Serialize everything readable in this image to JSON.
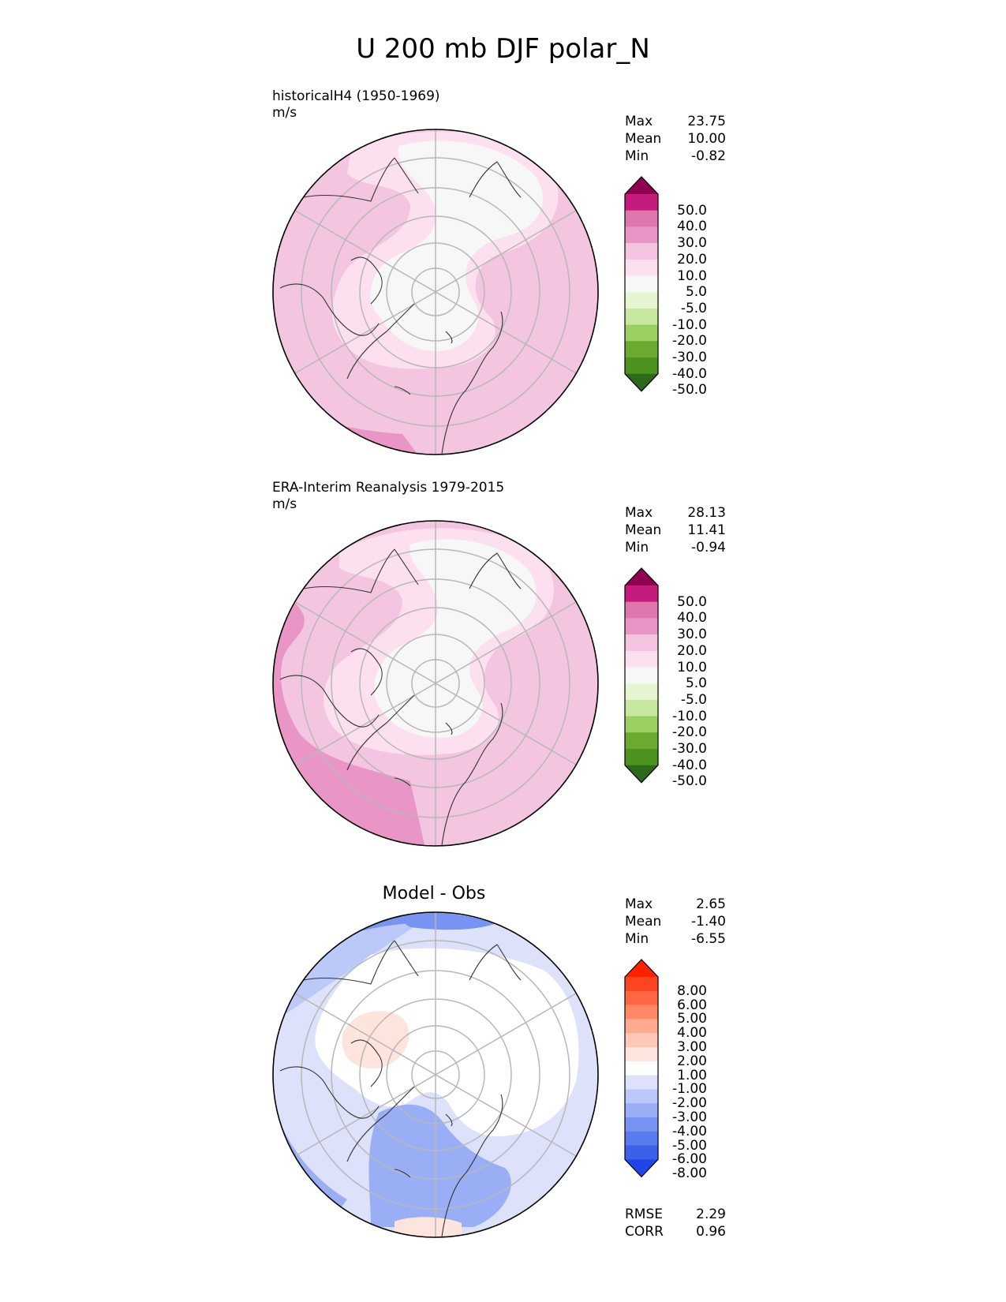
{
  "title": "U 200 mb DJF polar_N",
  "panels": [
    {
      "id": "test",
      "caption": "historicalH4 (1950-1969)",
      "units": "m/s",
      "stats": [
        {
          "label": "Max",
          "value": "23.75"
        },
        {
          "label": "Mean",
          "value": "10.00"
        },
        {
          "label": "Min",
          "value": "-0.82"
        }
      ]
    },
    {
      "id": "ref",
      "caption": "ERA-Interim Reanalysis 1979-2015",
      "units": "m/s",
      "stats": [
        {
          "label": "Max",
          "value": "28.13"
        },
        {
          "label": "Mean",
          "value": "11.41"
        },
        {
          "label": "Min",
          "value": "-0.94"
        }
      ]
    },
    {
      "id": "diff",
      "title": "Model - Obs",
      "stats": [
        {
          "label": "Max",
          "value": "2.65"
        },
        {
          "label": "Mean",
          "value": "-1.40"
        },
        {
          "label": "Min",
          "value": "-6.55"
        }
      ],
      "metrics": [
        {
          "label": "RMSE",
          "value": "2.29"
        },
        {
          "label": "CORR",
          "value": "0.96"
        }
      ]
    }
  ],
  "colorbars": {
    "field": {
      "labels": [
        "50.0",
        "40.0",
        "30.0",
        "20.0",
        "10.0",
        "5.0",
        "-5.0",
        "-10.0",
        "-20.0",
        "-30.0",
        "-40.0",
        "-50.0"
      ],
      "colors": [
        "#8e0152",
        "#c51b7d",
        "#de77ae",
        "#e996c6",
        "#f4c5e1",
        "#fde0ef",
        "#f7f7f7",
        "#e6f5d0",
        "#c8e8a0",
        "#9ccf62",
        "#6aaa30",
        "#4d9221",
        "#2a6a18"
      ]
    },
    "diff": {
      "labels": [
        "8.00",
        "6.00",
        "5.00",
        "4.00",
        "3.00",
        "2.00",
        "1.00",
        "-1.00",
        "-2.00",
        "-3.00",
        "-4.00",
        "-5.00",
        "-6.00",
        "-8.00"
      ],
      "colors": [
        "#ff2200",
        "#ff4422",
        "#ff6644",
        "#ff8866",
        "#ffaa8f",
        "#ffc8b6",
        "#fde4dc",
        "#ffffff",
        "#dde2fa",
        "#bcc8f8",
        "#9aaef5",
        "#7894f2",
        "#5a7aef",
        "#3c60ec",
        "#1f46e9"
      ]
    }
  },
  "chart_data": [
    {
      "type": "heatmap",
      "panel": "historicalH4 (1950-1969)",
      "projection": "north polar stereographic",
      "variable": "U 200 mb DJF",
      "units": "m/s",
      "levels": [
        -50,
        -40,
        -30,
        -20,
        -10,
        -5,
        5,
        10,
        20,
        30,
        40,
        50
      ],
      "max": 23.75,
      "mean": 10.0,
      "min": -0.82
    },
    {
      "type": "heatmap",
      "panel": "ERA-Interim Reanalysis 1979-2015",
      "projection": "north polar stereographic",
      "variable": "U 200 mb DJF",
      "units": "m/s",
      "levels": [
        -50,
        -40,
        -30,
        -20,
        -10,
        -5,
        5,
        10,
        20,
        30,
        40,
        50
      ],
      "max": 28.13,
      "mean": 11.41,
      "min": -0.94
    },
    {
      "type": "heatmap",
      "panel": "Model - Obs",
      "projection": "north polar stereographic",
      "levels": [
        -8,
        -6,
        -5,
        -4,
        -3,
        -2,
        -1,
        1,
        2,
        3,
        4,
        5,
        6,
        8
      ],
      "max": 2.65,
      "mean": -1.4,
      "min": -6.55,
      "rmse": 2.29,
      "corr": 0.96
    }
  ]
}
